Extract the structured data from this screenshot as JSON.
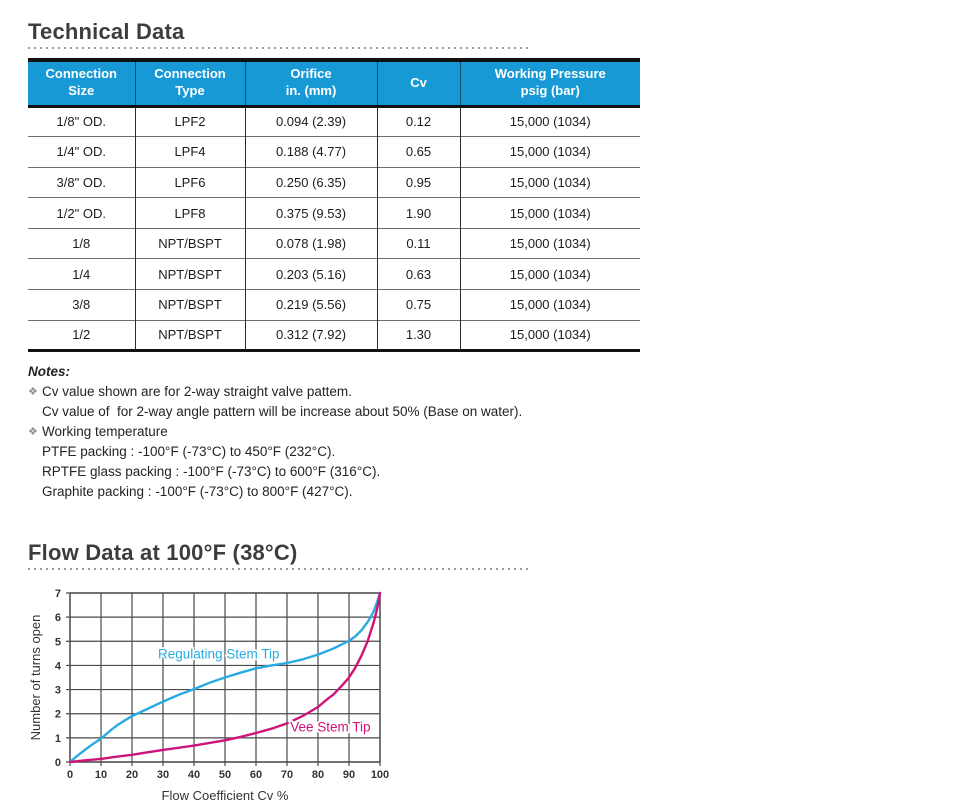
{
  "headings": {
    "technical": "Technical Data",
    "flow": "Flow Data at 100°F (38°C)"
  },
  "colors": {
    "header_blue": "#1799d5",
    "heading_text": "#3d3d3d",
    "grid": "#4a4a4a",
    "regulating_cyan": "#29abe2",
    "vee_magenta": "#ce1478"
  },
  "table": {
    "columns": [
      {
        "label": "Connection\nSize"
      },
      {
        "label": "Connection\nType"
      },
      {
        "label": "Orifice\nin. (mm)"
      },
      {
        "label": "Cv"
      },
      {
        "label": "Working Pressure\npsig (bar)"
      }
    ],
    "rows": [
      [
        "1/8\" OD.",
        "LPF2",
        "0.094 (2.39)",
        "0.12",
        "15,000 (1034)"
      ],
      [
        "1/4\" OD.",
        "LPF4",
        "0.188 (4.77)",
        "0.65",
        "15,000 (1034)"
      ],
      [
        "3/8\" OD.",
        "LPF6",
        "0.250 (6.35)",
        "0.95",
        "15,000 (1034)"
      ],
      [
        "1/2\" OD.",
        "LPF8",
        "0.375 (9.53)",
        "1.90",
        "15,000 (1034)"
      ],
      [
        "1/8",
        "NPT/BSPT",
        "0.078 (1.98)",
        "0.11",
        "15,000 (1034)"
      ],
      [
        "1/4",
        "NPT/BSPT",
        "0.203 (5.16)",
        "0.63",
        "15,000 (1034)"
      ],
      [
        "3/8",
        "NPT/BSPT",
        "0.219 (5.56)",
        "0.75",
        "15,000 (1034)"
      ],
      [
        "1/2",
        "NPT/BSPT",
        "0.312 (7.92)",
        "1.30",
        "15,000 (1034)"
      ]
    ]
  },
  "notes": {
    "heading": "Notes:",
    "bullet_glyph": "❖",
    "items": [
      {
        "bullet": true,
        "text": "Cv value shown are for 2-way straight valve pattem."
      },
      {
        "bullet": false,
        "text": "Cv value of  for 2-way angle pattern will be increase about 50% (Base on water)."
      },
      {
        "bullet": true,
        "text": "Working temperature"
      },
      {
        "bullet": false,
        "text": "PTFE packing : -100°F (-73°C) to 450°F (232°C)."
      },
      {
        "bullet": false,
        "text": "RPTFE glass packing : -100°F (-73°C) to 600°F (316°C)."
      },
      {
        "bullet": false,
        "text": "Graphite packing : -100°F (-73°C) to 800°F (427°C)."
      }
    ]
  },
  "chart_data": {
    "type": "line",
    "title": "",
    "xlabel": "Flow Coefficient Cv %",
    "ylabel": "Number of turns open",
    "xlim": [
      0,
      100
    ],
    "ylim": [
      0,
      7
    ],
    "xticks": [
      0,
      10,
      20,
      30,
      40,
      50,
      60,
      70,
      80,
      90,
      100
    ],
    "yticks": [
      0,
      1,
      2,
      3,
      4,
      5,
      6,
      7
    ],
    "grid": true,
    "legend_position": "inline-labels",
    "series": [
      {
        "name": "Regulating Stem Tip",
        "color": "#29abe2",
        "label_pos": {
          "x": 48,
          "y": 4.45
        },
        "points": [
          [
            0,
            0
          ],
          [
            2,
            0.22
          ],
          [
            5,
            0.52
          ],
          [
            8,
            0.8
          ],
          [
            10,
            0.97
          ],
          [
            13,
            1.3
          ],
          [
            15,
            1.5
          ],
          [
            18,
            1.75
          ],
          [
            20,
            1.9
          ],
          [
            25,
            2.2
          ],
          [
            30,
            2.5
          ],
          [
            35,
            2.78
          ],
          [
            40,
            3.02
          ],
          [
            45,
            3.28
          ],
          [
            50,
            3.5
          ],
          [
            55,
            3.7
          ],
          [
            60,
            3.88
          ],
          [
            65,
            4.0
          ],
          [
            70,
            4.1
          ],
          [
            75,
            4.25
          ],
          [
            80,
            4.45
          ],
          [
            85,
            4.7
          ],
          [
            90,
            5.02
          ],
          [
            92,
            5.2
          ],
          [
            94,
            5.45
          ],
          [
            96,
            5.8
          ],
          [
            97,
            6.0
          ],
          [
            98,
            6.25
          ],
          [
            99,
            6.6
          ],
          [
            100,
            7
          ]
        ]
      },
      {
        "name": "Vee Stem Tip",
        "color": "#ce1478",
        "label_pos": {
          "x": 84,
          "y": 1.42
        },
        "points": [
          [
            0,
            0
          ],
          [
            5,
            0.07
          ],
          [
            10,
            0.13
          ],
          [
            15,
            0.22
          ],
          [
            20,
            0.3
          ],
          [
            25,
            0.4
          ],
          [
            30,
            0.5
          ],
          [
            35,
            0.59
          ],
          [
            40,
            0.68
          ],
          [
            45,
            0.79
          ],
          [
            50,
            0.9
          ],
          [
            55,
            1.04
          ],
          [
            60,
            1.2
          ],
          [
            65,
            1.38
          ],
          [
            70,
            1.6
          ],
          [
            75,
            1.9
          ],
          [
            80,
            2.28
          ],
          [
            83,
            2.6
          ],
          [
            85,
            2.8
          ],
          [
            88,
            3.2
          ],
          [
            90,
            3.5
          ],
          [
            92,
            3.9
          ],
          [
            94,
            4.4
          ],
          [
            95,
            4.7
          ],
          [
            96,
            5.0
          ],
          [
            97,
            5.4
          ],
          [
            98,
            5.8
          ],
          [
            99,
            6.3
          ],
          [
            99.5,
            6.6
          ],
          [
            100,
            7
          ]
        ]
      }
    ]
  }
}
